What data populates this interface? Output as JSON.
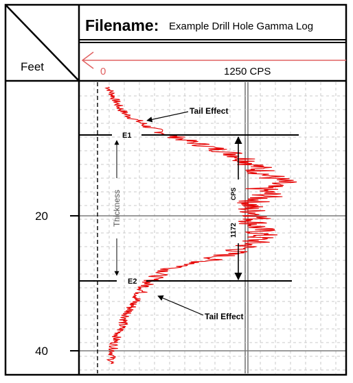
{
  "header": {
    "filename_label": "Filename:",
    "filename_value": "Example Drill Hole Gamma Log",
    "depth_label": "Feet"
  },
  "colors": {
    "trace": "#e60000",
    "frame": "#000000",
    "grid_major": "#7a7a7a",
    "grid_minor": "#c8c8c8"
  },
  "chart_data": {
    "type": "line",
    "y_axis": {
      "label": "Feet",
      "ticks": [
        20,
        40
      ],
      "reversed": true,
      "range": [
        -0.5,
        42
      ]
    },
    "x_axis": {
      "ticks": [
        "0",
        "1250 CPS"
      ],
      "arrow": "right-to-left"
    },
    "series": [
      {
        "points": [
          [
            0,
            90
          ],
          [
            1,
            120
          ],
          [
            2,
            150
          ],
          [
            3,
            180
          ],
          [
            4,
            230
          ],
          [
            5,
            330
          ],
          [
            6,
            430
          ],
          [
            7,
            580
          ],
          [
            8,
            750
          ],
          [
            9,
            950
          ],
          [
            10,
            1150
          ],
          [
            11,
            1270
          ],
          [
            12,
            1330
          ],
          [
            13,
            1400
          ],
          [
            14,
            1520
          ],
          [
            15,
            1350
          ],
          [
            16,
            1420
          ],
          [
            17,
            1300
          ],
          [
            18,
            1250
          ],
          [
            19,
            1350
          ],
          [
            20,
            1300
          ],
          [
            21,
            1340
          ],
          [
            22,
            1360
          ],
          [
            23,
            1300
          ],
          [
            24,
            1200
          ],
          [
            25,
            1050
          ],
          [
            26,
            850
          ],
          [
            27,
            600
          ],
          [
            28,
            500
          ],
          [
            29,
            420
          ],
          [
            30,
            380
          ],
          [
            31,
            340
          ],
          [
            32,
            300
          ],
          [
            33,
            270
          ],
          [
            34,
            240
          ],
          [
            35,
            210
          ],
          [
            36,
            190
          ],
          [
            37,
            160
          ],
          [
            38,
            140
          ],
          [
            39,
            130
          ],
          [
            40,
            120
          ],
          [
            41,
            110
          ]
        ]
      }
    ],
    "markers": [
      {
        "label": "E1",
        "depth": 8
      },
      {
        "label": "E2",
        "depth": 29.5
      }
    ],
    "thickness_label": "Thickness",
    "cps_bar": {
      "value": "1172",
      "unit": "CPS"
    },
    "annotations": [
      "Tail Effect",
      "Tail Effect"
    ]
  }
}
